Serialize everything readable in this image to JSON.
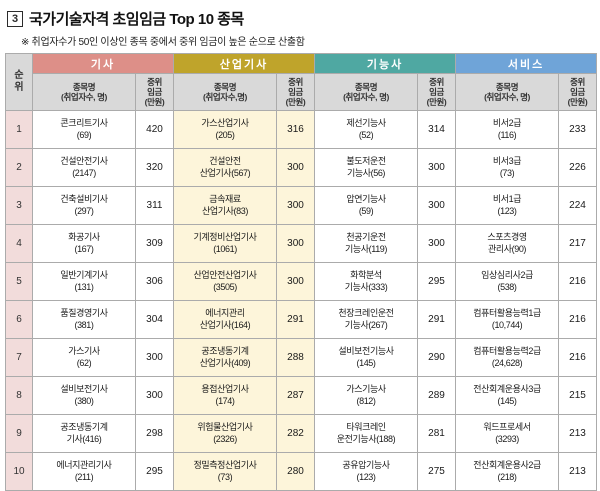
{
  "page": {
    "title_number": "3",
    "title": "국가기술자격 초임임금 Top 10 종목",
    "note": "※ 취업자수가 50인 이상인 종목 중에서 중위 임금이 높은 순으로 산출함"
  },
  "table": {
    "rank_header": "순\n위",
    "colors": {
      "gisa_header": "#dd8f88",
      "saneopgisa_header": "#bfa42b",
      "gineungsa_header": "#4fa8a2",
      "service_header": "#6fa4d8",
      "subheader_bg": "#d9d9d9",
      "rank_cell_bg": "#f2dcdb",
      "saneopgisa_cell_bg": "#fdf5da"
    },
    "groups": [
      {
        "name": "기사",
        "name_header": "종목명\n(취업자수, 명)",
        "wage_header": "중위\n임금\n(만원)"
      },
      {
        "name": "산업기사",
        "name_header": "종목명\n(취업자수,명)",
        "wage_header": "중위\n임금\n(만원)"
      },
      {
        "name": "기능사",
        "name_header": "종목명\n(취업자수, 명)",
        "wage_header": "중위\n임금\n(만원)"
      },
      {
        "name": "서비스",
        "name_header": "종목명\n(취업자수, 명)",
        "wage_header": "중위\n임금\n(만원)"
      }
    ],
    "rows": [
      {
        "rank": "1",
        "cells": [
          {
            "name": "콘크리트기사\n(69)",
            "wage": "420"
          },
          {
            "name": "가스산업기사\n(205)",
            "wage": "316"
          },
          {
            "name": "제선기능사\n(52)",
            "wage": "314"
          },
          {
            "name": "비서2급\n(116)",
            "wage": "233"
          }
        ]
      },
      {
        "rank": "2",
        "cells": [
          {
            "name": "건설안전기사\n(2147)",
            "wage": "320"
          },
          {
            "name": "건설안전\n산업기사(567)",
            "wage": "300"
          },
          {
            "name": "불도저운전\n기능사(56)",
            "wage": "300"
          },
          {
            "name": "비서3급\n(73)",
            "wage": "226"
          }
        ]
      },
      {
        "rank": "3",
        "cells": [
          {
            "name": "건축설비기사\n(297)",
            "wage": "311"
          },
          {
            "name": "금속재료\n산업기사(83)",
            "wage": "300"
          },
          {
            "name": "압연기능사\n(59)",
            "wage": "300"
          },
          {
            "name": "비서1급\n(123)",
            "wage": "224"
          }
        ]
      },
      {
        "rank": "4",
        "cells": [
          {
            "name": "화공기사\n(167)",
            "wage": "309"
          },
          {
            "name": "기계정비산업기사\n(1061)",
            "wage": "300"
          },
          {
            "name": "천공기운전\n기능사(119)",
            "wage": "300"
          },
          {
            "name": "스포츠경영\n관리사(90)",
            "wage": "217"
          }
        ]
      },
      {
        "rank": "5",
        "cells": [
          {
            "name": "일반기계기사\n(131)",
            "wage": "306"
          },
          {
            "name": "산업안전산업기사\n(3505)",
            "wage": "300"
          },
          {
            "name": "화학분석\n기능사(333)",
            "wage": "295"
          },
          {
            "name": "임상심리사2급\n(538)",
            "wage": "216"
          }
        ]
      },
      {
        "rank": "6",
        "cells": [
          {
            "name": "품질경영기사\n(381)",
            "wage": "304"
          },
          {
            "name": "에너지관리\n산업기사(164)",
            "wage": "291"
          },
          {
            "name": "천장크레인운전\n기능사(267)",
            "wage": "291"
          },
          {
            "name": "컴퓨터활용능력1급\n(10,744)",
            "wage": "216"
          }
        ]
      },
      {
        "rank": "7",
        "cells": [
          {
            "name": "가스기사\n(62)",
            "wage": "300"
          },
          {
            "name": "공조냉동기계\n산업기사(409)",
            "wage": "288"
          },
          {
            "name": "설비보전기능사\n(145)",
            "wage": "290"
          },
          {
            "name": "컴퓨터활용능력2급\n(24,628)",
            "wage": "216"
          }
        ]
      },
      {
        "rank": "8",
        "cells": [
          {
            "name": "설비보전기사\n(380)",
            "wage": "300"
          },
          {
            "name": "용접산업기사\n(174)",
            "wage": "287"
          },
          {
            "name": "가스기능사\n(812)",
            "wage": "289"
          },
          {
            "name": "전산회계운용사3급\n(145)",
            "wage": "215"
          }
        ]
      },
      {
        "rank": "9",
        "cells": [
          {
            "name": "공조냉동기계\n기사(416)",
            "wage": "298"
          },
          {
            "name": "위험물산업기사\n(2326)",
            "wage": "282"
          },
          {
            "name": "타워크레인\n운전기능사(188)",
            "wage": "281"
          },
          {
            "name": "워드프로세서\n(3293)",
            "wage": "213"
          }
        ]
      },
      {
        "rank": "10",
        "cells": [
          {
            "name": "에너지관리기사\n(211)",
            "wage": "295"
          },
          {
            "name": "정밀측정산업기사\n(73)",
            "wage": "280"
          },
          {
            "name": "공유압기능사\n(123)",
            "wage": "275"
          },
          {
            "name": "전산회계운용사2급\n(218)",
            "wage": "213"
          }
        ]
      }
    ]
  }
}
